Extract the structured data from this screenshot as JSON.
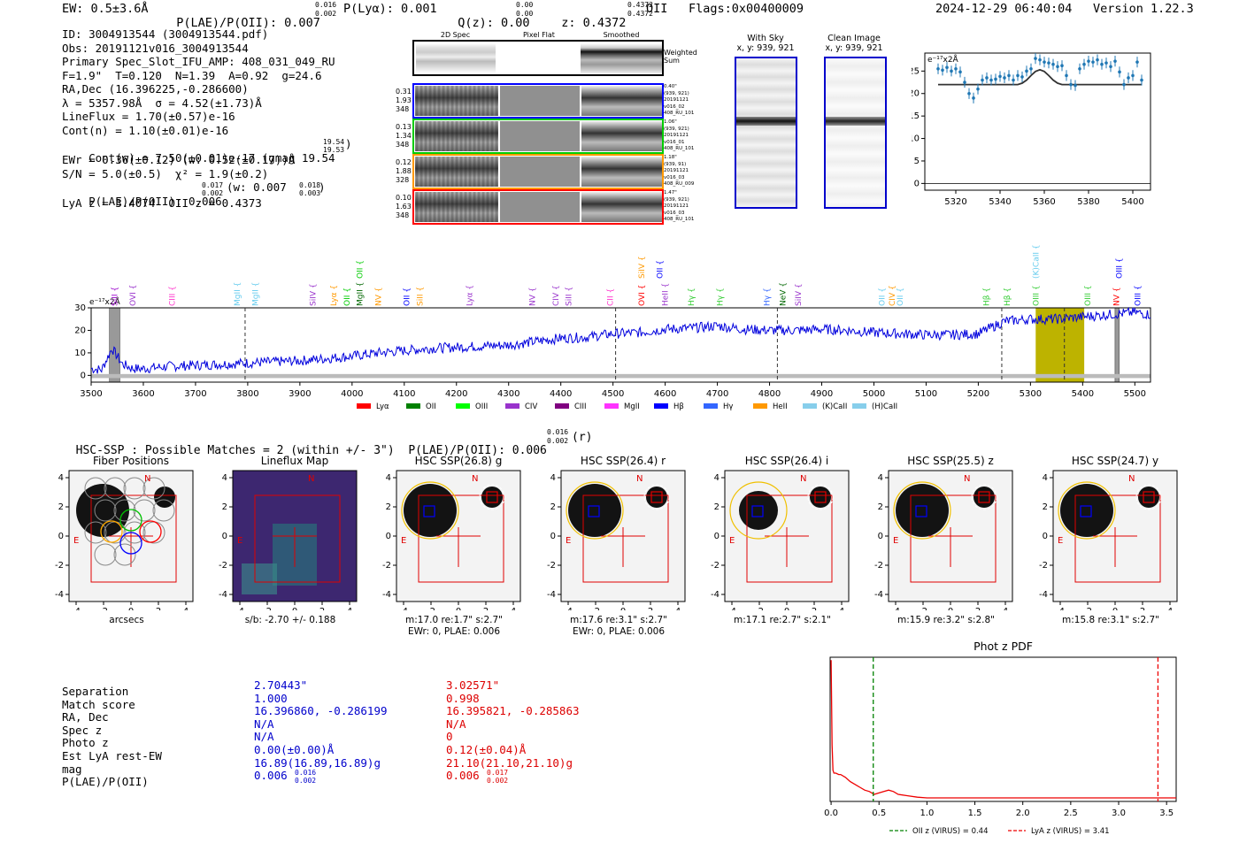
{
  "header": {
    "ew": "EW: 0.5±3.6Å",
    "plae": "P(LAE)/P(OII): 0.007",
    "plae_hi": "0.016",
    "plae_lo": "0.002",
    "plya": "P(Lyα): 0.001",
    "qz": "Q(z): 0.00",
    "qz_hi": "0.00",
    "qz_lo": "0.00",
    "z": "z: 0.4372",
    "z_hi": "0.4372",
    "z_lo": "0.4372",
    "z_line": "OII",
    "flags": "Flags:0x00400009",
    "datetime": "2024-12-29 06:40:04",
    "version": "Version 1.22.3"
  },
  "info": {
    "id": "ID: 3004913544 (3004913544.pdf)",
    "obs": "Obs: 20191121v016_3004913544",
    "primary": "Primary Spec_Slot_IFU_AMP: 408_031_049_RU",
    "fiber": "F=1.9\"  T=0.120  N=1.39  A=0.92  g=24.6",
    "radec": "RA,Dec (16.396225,-0.286600)",
    "lambda": "λ = 5357.98Å  σ = 4.52(±1.73)Å",
    "lineflux": "LineFlux = 1.70(±0.57)e-16",
    "contn": "Cont(n) = 1.10(±0.01)e-16",
    "contw": "Cont(w) = 7.50(±0.01)e-17 (gmag 19.54",
    "contw_hi": "19.54",
    "contw_lo": "19.53",
    "contw_end": ")",
    "ewr": "EWr = 0.36(±0.12) (w: 0.52(±0.17))Å",
    "sn": "S/N = 5.0(±0.5)  χ² = 1.9(±0.2)",
    "plae": "P(LAE)/P(OII): 0.006",
    "plae_hi": "0.017",
    "plae_lo": "0.002",
    "plae_w": "(w: 0.007",
    "plae_w_hi": "0.018",
    "plae_w_lo": "0.003",
    "plae_w_end": ")",
    "lyaz": "LyA z = 3.4074  OII z = 0.4373"
  },
  "fiber_panel": {
    "col_2d": "2D Spec",
    "col_flat": "Pixel Flat",
    "col_smooth": "Smoothed",
    "weighted": "Weighted Sum",
    "rows": [
      {
        "left": [
          "0.31",
          "1.93",
          "348"
        ],
        "right": [
          "0.40\"",
          "(939, 921)",
          "20191121",
          "v016_02",
          "408_RU_101"
        ],
        "color": "#0000ff"
      },
      {
        "left": [
          "0.13",
          "1.34",
          "348"
        ],
        "right": [
          "1.06\"",
          "(939, 921)",
          "20191121",
          "v016_01",
          "408_RU_101"
        ],
        "color": "#00cc00"
      },
      {
        "left": [
          "0.12",
          "1.88",
          "328"
        ],
        "right": [
          "1.18\"",
          "(939, 91)",
          "20191121",
          "v016_03",
          "408_RU_009"
        ],
        "color": "#ff9900"
      },
      {
        "left": [
          "0.10",
          "1.63",
          "348"
        ],
        "right": [
          "1.47\"",
          "(939, 921)",
          "20191121",
          "v016_03",
          "408_RU_101"
        ],
        "color": "#ff0000"
      }
    ]
  },
  "cutouts": {
    "with_sky": "With Sky",
    "with_sky_xy": "x, y: 939, 921",
    "clean": "Clean Image",
    "clean_xy": "x, y: 939, 921"
  },
  "zoom_chart": {
    "type": "line",
    "unit": "e⁻¹⁷x2Å",
    "x": [
      5312,
      5314,
      5316,
      5318,
      5320,
      5322,
      5324,
      5326,
      5328,
      5330,
      5332,
      5334,
      5336,
      5338,
      5340,
      5342,
      5344,
      5346,
      5348,
      5350,
      5352,
      5354,
      5356,
      5358,
      5360,
      5362,
      5364,
      5366,
      5368,
      5370,
      5372,
      5374,
      5376,
      5378,
      5380,
      5382,
      5384,
      5386,
      5388,
      5390,
      5392,
      5394,
      5396,
      5398,
      5400,
      5402,
      5404
    ],
    "y": [
      25.5,
      25.2,
      25.8,
      25,
      25.5,
      24.8,
      22.5,
      20,
      19,
      21,
      23,
      23.5,
      23,
      23.2,
      23.8,
      23.5,
      24,
      23,
      24,
      23.7,
      25,
      25.5,
      27.8,
      27.5,
      27,
      26.8,
      26.5,
      26,
      26.2,
      24,
      22,
      21.8,
      25.5,
      26.5,
      27.2,
      27,
      27.5,
      26.5,
      26.8,
      26,
      27.2,
      24.8,
      22,
      23.5,
      24,
      27,
      23
    ],
    "model_y": [
      22,
      22,
      22,
      22,
      22,
      22,
      22,
      22,
      22,
      22,
      22,
      22,
      22,
      22,
      22,
      22,
      22,
      22,
      22,
      22.3,
      23,
      24,
      24.9,
      25.3,
      24.9,
      24,
      23,
      22.3,
      22,
      22,
      22,
      22,
      22,
      22,
      22,
      22,
      22,
      22,
      22,
      22,
      22,
      22,
      22,
      22,
      22,
      22,
      22
    ],
    "xticks": [
      5320,
      5340,
      5360,
      5380,
      5400
    ],
    "yticks": [
      0,
      5,
      10,
      15,
      20,
      25
    ],
    "xlim": [
      5306,
      5408
    ],
    "ylim": [
      -1.5,
      29
    ]
  },
  "full_spectrum": {
    "unit": "e⁻¹⁷x2Å",
    "xticks": [
      3500,
      3600,
      3700,
      3800,
      3900,
      4000,
      4100,
      4200,
      4300,
      4400,
      4500,
      4600,
      4700,
      4800,
      4900,
      5000,
      5100,
      5200,
      5300,
      5400,
      5500
    ],
    "yticks": [
      0,
      10,
      20,
      30
    ],
    "xlim": [
      3500,
      5530
    ],
    "ylim": [
      -3,
      30
    ],
    "anchors_x": [
      3500,
      3520,
      3540,
      3560,
      3580,
      3600,
      3650,
      3700,
      3750,
      3800,
      3850,
      3900,
      3950,
      4000,
      4050,
      4100,
      4150,
      4200,
      4250,
      4300,
      4350,
      4400,
      4450,
      4500,
      4550,
      4600,
      4650,
      4700,
      4750,
      4800,
      4850,
      4900,
      4950,
      5000,
      5050,
      5100,
      5150,
      5200,
      5250,
      5300,
      5350,
      5400,
      5450,
      5500,
      5530
    ],
    "anchors_y": [
      3,
      2.5,
      12,
      5,
      3,
      3,
      4,
      4.5,
      5,
      5.5,
      6,
      6.5,
      7.5,
      8.5,
      10,
      11,
      12,
      12.5,
      13,
      13.5,
      15,
      16.5,
      17,
      18.5,
      19,
      20.5,
      21,
      22,
      20.5,
      20,
      20,
      20.5,
      20,
      19,
      18.5,
      18,
      18,
      18.5,
      24,
      25,
      25,
      26,
      27,
      28,
      27
    ],
    "dashed_lines": [
      3795,
      4505,
      4815,
      5245,
      5365
    ],
    "emission_band": [
      5310,
      5403
    ],
    "gray_bands": [
      [
        3535,
        3555
      ],
      [
        5462,
        5470
      ]
    ],
    "line_ids": [
      {
        "x": 3545,
        "label": "SiII",
        "color": "#9900cc"
      },
      {
        "x": 3580,
        "label": "OVI",
        "color": "#9933cc"
      },
      {
        "x": 3655,
        "label": "CIII",
        "color": "#ff33cc"
      },
      {
        "x": 3780,
        "label": "MgII",
        "color": "#66ccee"
      },
      {
        "x": 3815,
        "label": "MgII",
        "color": "#66ccee"
      },
      {
        "x": 3925,
        "label": "SiIV",
        "color": "#9933cc"
      },
      {
        "x": 3965,
        "label": "Lyα",
        "color": "#ff9900"
      },
      {
        "x": 3990,
        "label": "OII",
        "color": "#00cc00"
      },
      {
        "x": 4015,
        "label": "MgII",
        "color": "#006600"
      },
      {
        "x": 4050,
        "label": "NV",
        "color": "#ff9900"
      },
      {
        "x": 4105,
        "label": "OII",
        "color": "#0000ff"
      },
      {
        "x": 4130,
        "label": "SiII",
        "color": "#ff9900"
      },
      {
        "x": 4225,
        "label": "Lyα",
        "color": "#9933cc"
      },
      {
        "x": 4345,
        "label": "NV",
        "color": "#9933cc"
      },
      {
        "x": 4390,
        "label": "CIV",
        "color": "#9933cc"
      },
      {
        "x": 4415,
        "label": "SiII",
        "color": "#9933cc"
      },
      {
        "x": 4495,
        "label": "CII",
        "color": "#ff33cc"
      },
      {
        "x": 4555,
        "label": "OVI",
        "color": "#ff0000"
      },
      {
        "x": 4600,
        "label": "HeII",
        "color": "#9933cc"
      },
      {
        "x": 4650,
        "label": "Hγ",
        "color": "#33cc33"
      },
      {
        "x": 4705,
        "label": "Hγ",
        "color": "#33cc33"
      },
      {
        "x": 4795,
        "label": "Hγ",
        "color": "#3366ff"
      },
      {
        "x": 4825,
        "label": "NeV",
        "color": "#006600"
      },
      {
        "x": 4855,
        "label": "SiIV",
        "color": "#9933cc"
      },
      {
        "x": 5015,
        "label": "OII",
        "color": "#66ccee"
      },
      {
        "x": 5035,
        "label": "CIV",
        "color": "#ff9900"
      },
      {
        "x": 5050,
        "label": "OII",
        "color": "#66ccee"
      },
      {
        "x": 5215,
        "label": "Hβ",
        "color": "#33cc33"
      },
      {
        "x": 5255,
        "label": "Hβ",
        "color": "#33cc33"
      },
      {
        "x": 5310,
        "label": "OIII",
        "color": "#33cc33"
      },
      {
        "x": 5410,
        "label": "OIII",
        "color": "#33cc33"
      },
      {
        "x": 5465,
        "label": "NV",
        "color": "#ff0000"
      },
      {
        "x": 5505,
        "label": "OIII",
        "color": "#0000ff"
      }
    ],
    "top_ids": [
      {
        "x": 4555,
        "label": "SiIV",
        "color": "#ff9900"
      },
      {
        "x": 4590,
        "label": "OII",
        "color": "#0000ff"
      },
      {
        "x": 4015,
        "label": "OII",
        "color": "#00cc00"
      },
      {
        "x": 5310,
        "label": "(K)CaII",
        "color": "#66ccee"
      },
      {
        "x": 5470,
        "label": "OIII",
        "color": "#0000ff"
      }
    ],
    "legend": [
      {
        "label": "Lyα",
        "color": "#ff0000"
      },
      {
        "label": "OII",
        "color": "#008000"
      },
      {
        "label": "OIII",
        "color": "#00ff00"
      },
      {
        "label": "CIV",
        "color": "#9933cc"
      },
      {
        "label": "CIII",
        "color": "#800080"
      },
      {
        "label": "MgII",
        "color": "#ff33ff"
      },
      {
        "label": "Hβ",
        "color": "#0000ff"
      },
      {
        "label": "Hγ",
        "color": "#3366ff"
      },
      {
        "label": "HeII",
        "color": "#ff9900"
      },
      {
        "label": "(K)CaII",
        "color": "#87ceeb"
      },
      {
        "label": "(H)CaII",
        "color": "#87ceeb"
      }
    ]
  },
  "hsc": {
    "heading": "HSC-SSP : Possible Matches = 2 (within +/- 3\")  P(LAE)/P(OII): 0.006",
    "heading_hi": "0.016",
    "heading_lo": "0.002",
    "heading_end": "(r)",
    "thumbs": [
      {
        "title": "Fiber Positions",
        "sub1": "arcsecs",
        "sub2": ""
      },
      {
        "title": "Lineflux Map",
        "sub1": "s/b: -2.70 +/- 0.188",
        "sub2": ""
      },
      {
        "title": "HSC SSP(26.8) g",
        "sub1": "m:17.0  re:1.7\"  s:2.7\"",
        "sub2": "EWr: 0, PLAE: 0.006"
      },
      {
        "title": "HSC SSP(26.4) r",
        "sub1": "m:17.6  re:3.1\"  s:2.7\"",
        "sub2": "EWr: 0, PLAE: 0.006"
      },
      {
        "title": "HSC SSP(26.4) i",
        "sub1": "m:17.1  re:2.7\"  s:2.1\"",
        "sub2": ""
      },
      {
        "title": "HSC SSP(25.5) z",
        "sub1": "m:15.9  re:3.2\"  s:2.8\"",
        "sub2": ""
      },
      {
        "title": "HSC SSP(24.7) y",
        "sub1": "m:15.8  re:3.1\"  s:2.7\"",
        "sub2": ""
      }
    ],
    "axis_ticks": [
      "-4",
      "-2",
      "0",
      "2",
      "4"
    ],
    "north": "N",
    "east": "E"
  },
  "match_table": {
    "labels": [
      "Separation",
      "Match score",
      "RA, Dec",
      "Spec z",
      "Photo z",
      "Est LyA rest-EW",
      "mag",
      "P(LAE)/P(OII)"
    ],
    "col1": [
      "2.70443\"",
      "1.000",
      "16.396860, -0.286199",
      "N/A",
      "N/A",
      "0.00(±0.00)Å",
      "16.89(16.89,16.89)g",
      "0.006"
    ],
    "col1_plae_hi": "0.016",
    "col1_plae_lo": "0.002",
    "col2": [
      "3.02571\"",
      "0.998",
      "16.395821, -0.285863",
      "N/A",
      "0",
      "0.12(±0.04)Å",
      "21.10(21.10,21.10)g",
      "0.006"
    ],
    "col2_plae_hi": "0.017",
    "col2_plae_lo": "0.002"
  },
  "chart_data": {
    "type": "line",
    "title": "Phot z PDF",
    "x": [
      0.0,
      0.01,
      0.02,
      0.03,
      0.05,
      0.08,
      0.1,
      0.15,
      0.2,
      0.25,
      0.3,
      0.35,
      0.4,
      0.45,
      0.5,
      0.55,
      0.6,
      0.65,
      0.7,
      0.8,
      0.9,
      1.0,
      1.2,
      1.5,
      2.0,
      2.5,
      3.0,
      3.5,
      3.6
    ],
    "y": [
      1.0,
      0.4,
      0.22,
      0.2,
      0.2,
      0.19,
      0.19,
      0.17,
      0.14,
      0.12,
      0.1,
      0.08,
      0.07,
      0.05,
      0.06,
      0.07,
      0.08,
      0.07,
      0.05,
      0.04,
      0.03,
      0.025,
      0.025,
      0.025,
      0.025,
      0.025,
      0.025,
      0.025,
      0.025
    ],
    "xlim": [
      -0.01,
      3.6
    ],
    "ylim": [
      0,
      1.02
    ],
    "xticks": [
      "0.0",
      "0.5",
      "1.0",
      "1.5",
      "2.0",
      "2.5",
      "3.0",
      "3.5"
    ],
    "xtick_values": [
      0,
      0.5,
      1.0,
      1.5,
      2.0,
      2.5,
      3.0,
      3.5
    ],
    "oii_z": 0.44,
    "lya_z": 3.41,
    "legend_oii": "OII z (VIRUS) = 0.44",
    "legend_lya": "LyA z (VIRUS) = 3.41"
  }
}
